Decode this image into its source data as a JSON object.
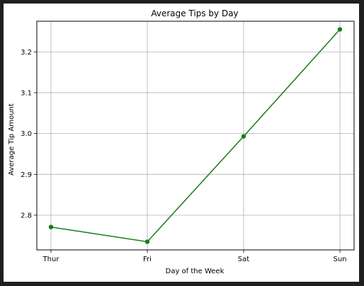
{
  "chart_data": {
    "type": "line",
    "title": "Average Tips by Day",
    "xlabel": "Day of the Week",
    "ylabel": "Average Tip Amount",
    "categories": [
      "Thur",
      "Fri",
      "Sat",
      "Sun"
    ],
    "series": [
      {
        "values": [
          2.771,
          2.735,
          2.993,
          3.255
        ],
        "color": "#1a7a1a",
        "marker": "circle"
      }
    ],
    "yticks": [
      "2.8",
      "2.9",
      "3.0",
      "3.1",
      "3.2"
    ],
    "ylim": [
      2.715,
      3.275
    ],
    "grid": true,
    "legend": "none"
  }
}
